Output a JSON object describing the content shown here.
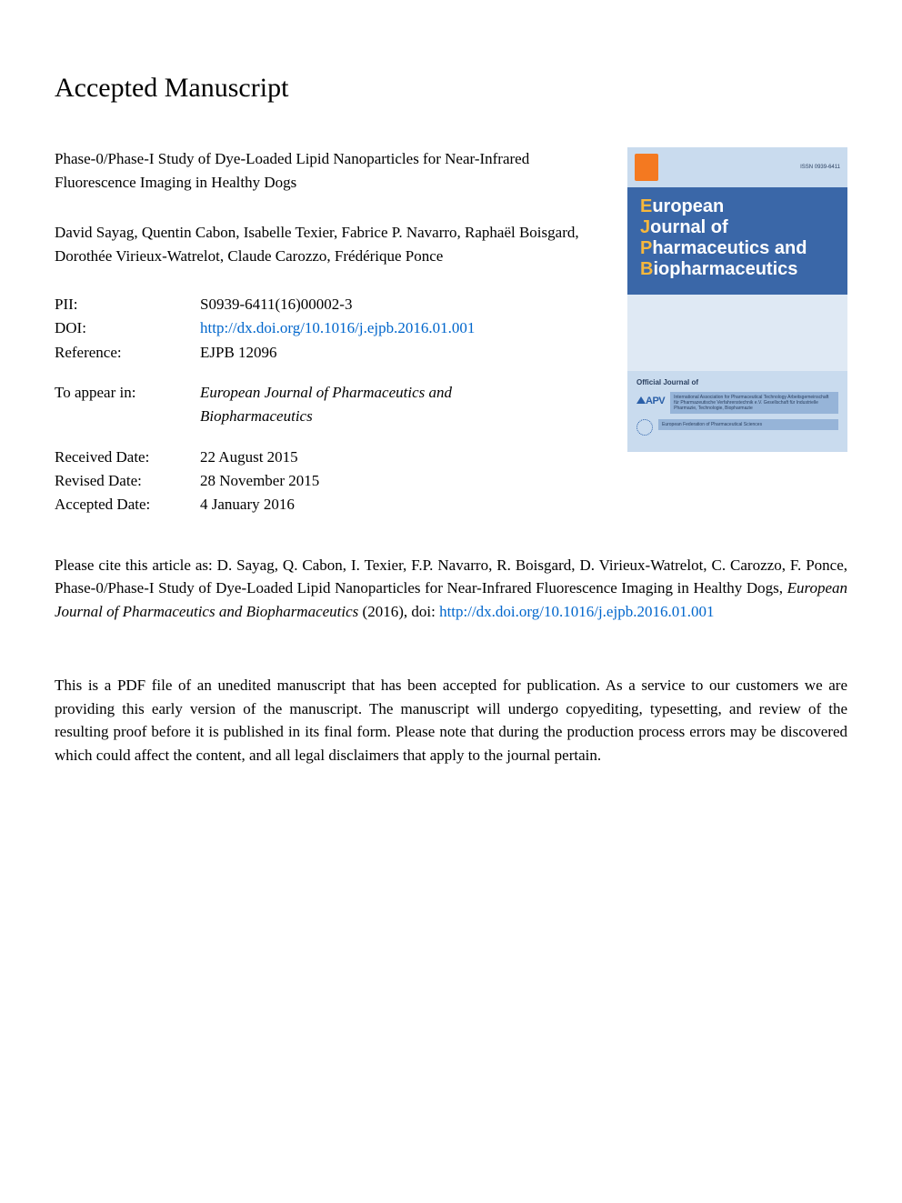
{
  "heading": "Accepted Manuscript",
  "article_title": "Phase-0/Phase-I Study of Dye-Loaded Lipid Nanoparticles for Near-Infrared Fluorescence Imaging in Healthy Dogs",
  "authors": "David Sayag, Quentin Cabon, Isabelle Texier, Fabrice P. Navarro, Raphaël Boisgard, Dorothée Virieux-Watrelot, Claude Carozzo, Frédérique Ponce",
  "meta": {
    "pii_label": "PII:",
    "pii_value": "S0939-6411(16)00002-3",
    "doi_label": "DOI:",
    "doi_value": "http://dx.doi.org/10.1016/j.ejpb.2016.01.001",
    "reference_label": "Reference:",
    "reference_value": "EJPB 12096",
    "appear_label": "To appear in:",
    "appear_value": "European Journal of Pharmaceutics and Biopharmaceutics",
    "received_label": "Received Date:",
    "received_value": "22 August 2015",
    "revised_label": "Revised Date:",
    "revised_value": "28 November 2015",
    "accepted_label": "Accepted Date:",
    "accepted_value": "4 January 2016"
  },
  "cover": {
    "issn": "ISSN 0939-6411",
    "line1a": "E",
    "line1b": "uropean",
    "line2a": "J",
    "line2b": "ournal of",
    "line3a": "P",
    "line3b": "harmaceutics and",
    "line4a": "B",
    "line4b": "iopharmaceutics",
    "official": "Official Journal of",
    "apv": "APV",
    "assoc1": "International Association for Pharmaceutical Technology Arbeitsgemeinschaft für Pharmazeutische Verfahrenstechnik e.V. Gesellschaft für Industrielle Pharmazie, Technologie, Biopharmazie",
    "assoc2": "European Federation of Pharmaceutical Sciences"
  },
  "citation": {
    "prefix": "Please cite this article as: D. Sayag, Q. Cabon, I. Texier, F.P. Navarro, R. Boisgard, D. Virieux-Watrelot, C. Carozzo, F. Ponce, Phase-0/Phase-I Study of Dye-Loaded Lipid Nanoparticles for Near-Infrared Fluorescence Imaging in Healthy Dogs, ",
    "journal": "European Journal of Pharmaceutics and Biopharmaceutics",
    "year": " (2016), doi: ",
    "doi_link": "http://dx.doi.org/10.1016/j.ejpb.2016.01.001"
  },
  "disclaimer": "This is a PDF file of an unedited manuscript that has been accepted for publication. As a service to our customers we are providing this early version of the manuscript. The manuscript will undergo copyediting, typesetting, and review of the resulting proof before it is published in its final form. Please note that during the production process errors may be discovered which could affect the content, and all legal disclaimers that apply to the journal pertain.",
  "colors": {
    "link": "#0066cc",
    "cover_bg": "#3a67a8",
    "cover_light": "#c9dbee",
    "cover_mid": "#dfe9f4",
    "accent": "#f6b73c",
    "elsevier": "#f47920"
  }
}
